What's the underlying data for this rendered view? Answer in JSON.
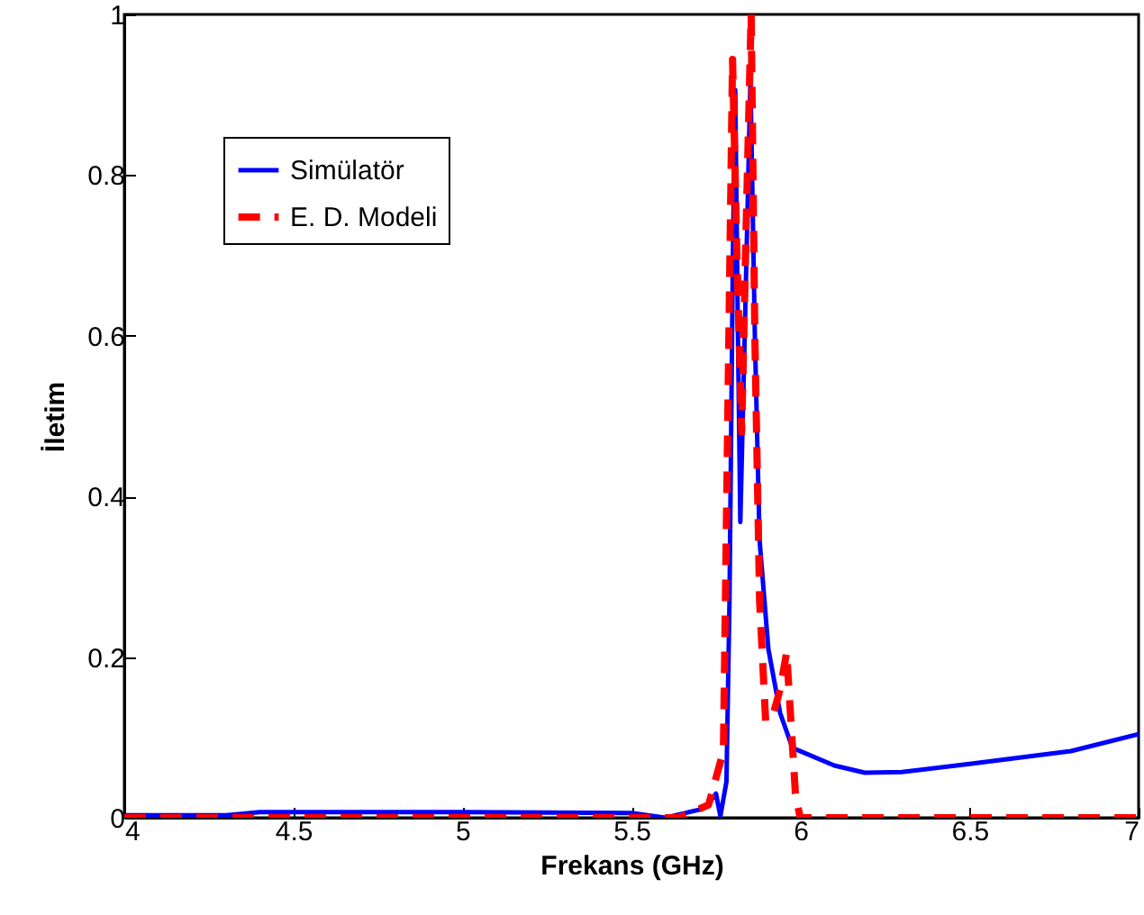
{
  "chart_data": {
    "type": "line",
    "xlabel": "Frekans (GHz)",
    "ylabel": "İletim",
    "xlim": [
      4,
      7
    ],
    "xticks": [
      4,
      4.5,
      5,
      5.5,
      6,
      6.5,
      7
    ],
    "ylim": [
      0,
      1
    ],
    "yticks": [
      0,
      0.2,
      0.4,
      0.6,
      0.8,
      1
    ],
    "grid": false,
    "legend": "top left",
    "marker": "none",
    "series": [
      {
        "name": "Simülatör",
        "color": "#0000ff",
        "line_style": "solid",
        "x": [
          4,
          4.3,
          4.4,
          5,
          5.5,
          5.6,
          5.7,
          5.726,
          5.75,
          5.763,
          5.781,
          5.79,
          5.8,
          5.807,
          5.815,
          5.822,
          5.835,
          5.852,
          5.865,
          5.879,
          5.905,
          5.94,
          5.976,
          6.1,
          6.19,
          6.3,
          6.5,
          6.8,
          7
        ],
        "values": [
          0.003,
          0.003,
          0.007,
          0.007,
          0.006,
          0,
          0.01,
          0.016,
          0.03,
          0.002,
          0.045,
          0.27,
          0.7,
          0.906,
          0.6,
          0.368,
          0.6,
          0.92,
          0.6,
          0.345,
          0.21,
          0.13,
          0.087,
          0.065,
          0.056,
          0.057,
          0.067,
          0.083,
          0.104
        ]
      },
      {
        "name": "E. D. Modeli",
        "color": "#ff0000",
        "line_style": "dashed",
        "x": [
          4,
          5.5,
          5.6,
          5.64,
          5.728,
          5.772,
          5.785,
          5.799,
          5.812,
          5.826,
          5.84,
          5.854,
          5.865,
          5.879,
          5.897,
          5.92,
          5.94,
          5.959,
          5.985,
          5.999,
          6.1,
          7
        ],
        "values": [
          0,
          0,
          0,
          0,
          0.016,
          0.083,
          0.5,
          0.944,
          0.7,
          0.48,
          0.75,
          1,
          0.6,
          0.27,
          0.12,
          0.13,
          0.16,
          0.206,
          0.03,
          0,
          0,
          0
        ]
      }
    ]
  }
}
